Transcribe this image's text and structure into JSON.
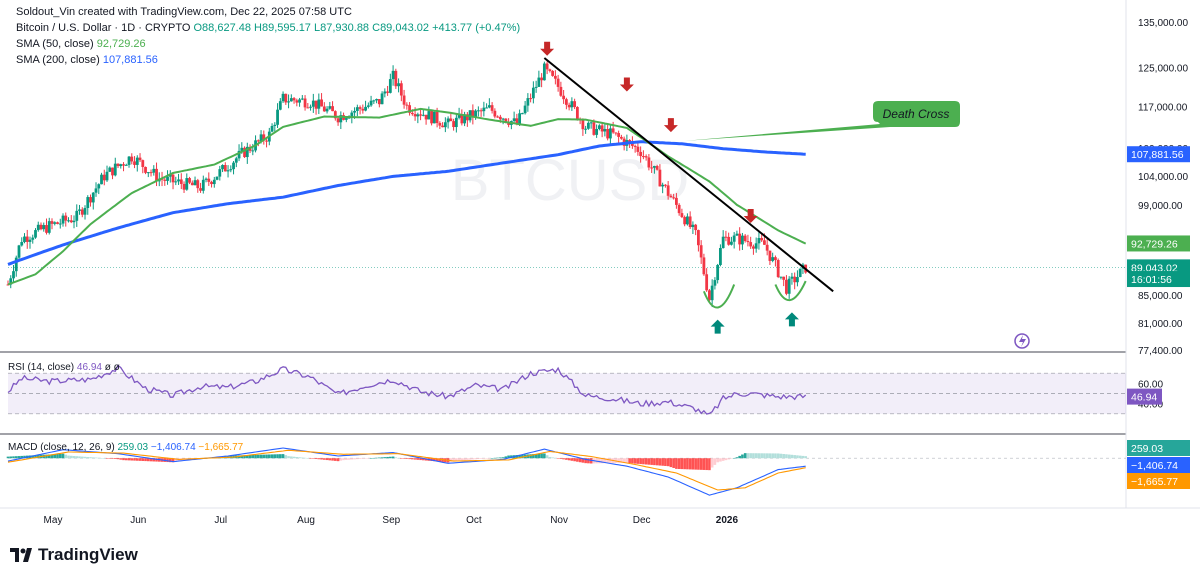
{
  "header": {
    "attribution": "Soldout_Vin created with TradingView.com, Dec 22, 2025 07:58 UTC",
    "symbol": "Bitcoin / U.S. Dollar · 1D · CRYPTO",
    "ohlc": {
      "o": "O88,627.48",
      "h": "H89,595.17",
      "l": "L87,930.88",
      "c": "C89,043.02",
      "chg": "+413.77 (+0.47%)"
    },
    "sma50_label": "SMA (50, close)",
    "sma50_value": "92,729.26",
    "sma200_label": "SMA (200, close)",
    "sma200_value": "107,881.56"
  },
  "watermark": "BTCUSD",
  "annotation": "Death Cross",
  "footer": {
    "brand": "TradingView"
  },
  "colors": {
    "up": "#089981",
    "down": "#f23645",
    "sma50": "#4caf50",
    "sma200": "#2962ff",
    "trend": "#000000",
    "rsi": "#7e57c2",
    "macd": "#2962ff",
    "signal": "#ff9800"
  },
  "price_axis": {
    "ticks": [
      "135,000.00",
      "125,000.00",
      "117,000.00",
      "109,000.00",
      "104,000.00",
      "99,000.00",
      "85,000.00",
      "81,000.00",
      "77,400.00"
    ],
    "tick_values": [
      135000,
      125000,
      117000,
      109000,
      104000,
      99000,
      85000,
      81000,
      77400
    ],
    "badges": [
      {
        "text": "107,881.56",
        "color": "#2962ff",
        "value": 107881.56
      },
      {
        "text": "92,729.26",
        "color": "#4caf50",
        "value": 92729.26
      },
      {
        "text": "89,043.02",
        "color": "#089981",
        "value": 89043.02
      },
      {
        "text": "16:01:56",
        "color": "#089981",
        "value": 87300
      }
    ]
  },
  "time_axis": {
    "labels": [
      "May",
      "Jun",
      "Jul",
      "Aug",
      "Sep",
      "Oct",
      "Nov",
      "Dec",
      "2026"
    ]
  },
  "rsi": {
    "label": "RSI (14, close)",
    "value": "46.94",
    "extra": "ø ø",
    "ticks": [
      "60.00",
      "40.00"
    ],
    "tick_values": [
      60,
      40
    ],
    "badge": "46.94"
  },
  "macd": {
    "label": "MACD (close, 12, 26, 9)",
    "hist": "259.03",
    "macd": "−1,406.74",
    "signal": "−1,665.77",
    "badges": [
      "259.03",
      "−1,406.74",
      "−1,665.77"
    ]
  },
  "chart_data": {
    "type": "candlestick",
    "series": [
      {
        "name": "SMA (50, close)",
        "anchors": [
          [
            0,
            86500
          ],
          [
            10,
            88000
          ],
          [
            20,
            91500
          ],
          [
            30,
            95800
          ],
          [
            45,
            101000
          ],
          [
            60,
            104500
          ],
          [
            75,
            106000
          ],
          [
            90,
            109500
          ],
          [
            100,
            113000
          ],
          [
            115,
            115000
          ],
          [
            135,
            114800
          ],
          [
            150,
            116500
          ],
          [
            160,
            115800
          ],
          [
            175,
            114400
          ],
          [
            190,
            113200
          ],
          [
            200,
            114500
          ],
          [
            210,
            114400
          ],
          [
            225,
            112800
          ],
          [
            240,
            107500
          ],
          [
            255,
            103000
          ],
          [
            265,
            99000
          ],
          [
            280,
            94800
          ],
          [
            290,
            92700
          ]
        ]
      },
      {
        "name": "SMA (200, close)",
        "anchors": [
          [
            0,
            89500
          ],
          [
            20,
            92500
          ],
          [
            40,
            95200
          ],
          [
            60,
            97700
          ],
          [
            80,
            99200
          ],
          [
            100,
            100300
          ],
          [
            120,
            102300
          ],
          [
            140,
            103900
          ],
          [
            160,
            104800
          ],
          [
            180,
            106300
          ],
          [
            200,
            107800
          ],
          [
            215,
            109400
          ],
          [
            230,
            110200
          ],
          [
            245,
            109800
          ],
          [
            260,
            108900
          ],
          [
            275,
            108300
          ],
          [
            290,
            107880
          ]
        ]
      }
    ],
    "closes_anchors": [
      [
        0,
        86500
      ],
      [
        5,
        93500
      ],
      [
        15,
        95500
      ],
      [
        25,
        97000
      ],
      [
        35,
        104000
      ],
      [
        45,
        107500
      ],
      [
        55,
        103500
      ],
      [
        70,
        102000
      ],
      [
        78,
        105000
      ],
      [
        85,
        108000
      ],
      [
        95,
        111500
      ],
      [
        100,
        118500
      ],
      [
        110,
        118000
      ],
      [
        120,
        115000
      ],
      [
        135,
        118000
      ],
      [
        140,
        123000
      ],
      [
        145,
        117000
      ],
      [
        160,
        113500
      ],
      [
        175,
        116500
      ],
      [
        185,
        113500
      ],
      [
        195,
        124500
      ],
      [
        200,
        121000
      ],
      [
        210,
        113000
      ],
      [
        220,
        111500
      ],
      [
        230,
        108500
      ],
      [
        240,
        101000
      ],
      [
        250,
        94000
      ],
      [
        255,
        84500
      ],
      [
        260,
        93500
      ],
      [
        265,
        93500
      ],
      [
        275,
        92500
      ],
      [
        283,
        86000
      ],
      [
        290,
        89043
      ]
    ],
    "rsi_anchors": [
      [
        0,
        52
      ],
      [
        5,
        65
      ],
      [
        15,
        62
      ],
      [
        30,
        64
      ],
      [
        40,
        75
      ],
      [
        50,
        55
      ],
      [
        60,
        48
      ],
      [
        70,
        57
      ],
      [
        80,
        56
      ],
      [
        90,
        62
      ],
      [
        100,
        74
      ],
      [
        110,
        66
      ],
      [
        120,
        49
      ],
      [
        130,
        58
      ],
      [
        140,
        64
      ],
      [
        150,
        52
      ],
      [
        160,
        47
      ],
      [
        170,
        58
      ],
      [
        180,
        54
      ],
      [
        190,
        70
      ],
      [
        200,
        74
      ],
      [
        210,
        48
      ],
      [
        220,
        45
      ],
      [
        230,
        40
      ],
      [
        240,
        42
      ],
      [
        250,
        35
      ],
      [
        255,
        28
      ],
      [
        260,
        45
      ],
      [
        265,
        50
      ],
      [
        270,
        50
      ],
      [
        280,
        47
      ],
      [
        290,
        47
      ]
    ],
    "macd_anchors": [
      [
        0,
        -500
      ],
      [
        20,
        1500
      ],
      [
        40,
        800
      ],
      [
        60,
        -600
      ],
      [
        80,
        400
      ],
      [
        100,
        1800
      ],
      [
        120,
        400
      ],
      [
        140,
        1000
      ],
      [
        160,
        -900
      ],
      [
        180,
        -200
      ],
      [
        195,
        1600
      ],
      [
        210,
        -200
      ],
      [
        225,
        -1400
      ],
      [
        240,
        -3300
      ],
      [
        255,
        -6500
      ],
      [
        265,
        -5200
      ],
      [
        280,
        -2000
      ],
      [
        290,
        -1406.74
      ]
    ],
    "signal_anchors": [
      [
        0,
        -700
      ],
      [
        22,
        1100
      ],
      [
        42,
        900
      ],
      [
        62,
        -200
      ],
      [
        82,
        200
      ],
      [
        102,
        1400
      ],
      [
        122,
        700
      ],
      [
        142,
        800
      ],
      [
        162,
        -500
      ],
      [
        182,
        -300
      ],
      [
        197,
        1200
      ],
      [
        212,
        300
      ],
      [
        228,
        -1100
      ],
      [
        243,
        -2600
      ],
      [
        258,
        -5600
      ],
      [
        268,
        -5200
      ],
      [
        280,
        -2600
      ],
      [
        290,
        -1665.77
      ]
    ],
    "x_range": [
      0,
      290
    ],
    "y_range_price": [
      77400,
      135000
    ],
    "trendline": [
      [
        195,
        127000
      ],
      [
        300,
        85500
      ]
    ],
    "down_arrows": [
      [
        196,
        127500
      ],
      [
        225,
        120000
      ],
      [
        241,
        112000
      ],
      [
        270,
        96000
      ]
    ],
    "up_arrows": [
      [
        258,
        81500
      ],
      [
        285,
        82500
      ]
    ]
  }
}
